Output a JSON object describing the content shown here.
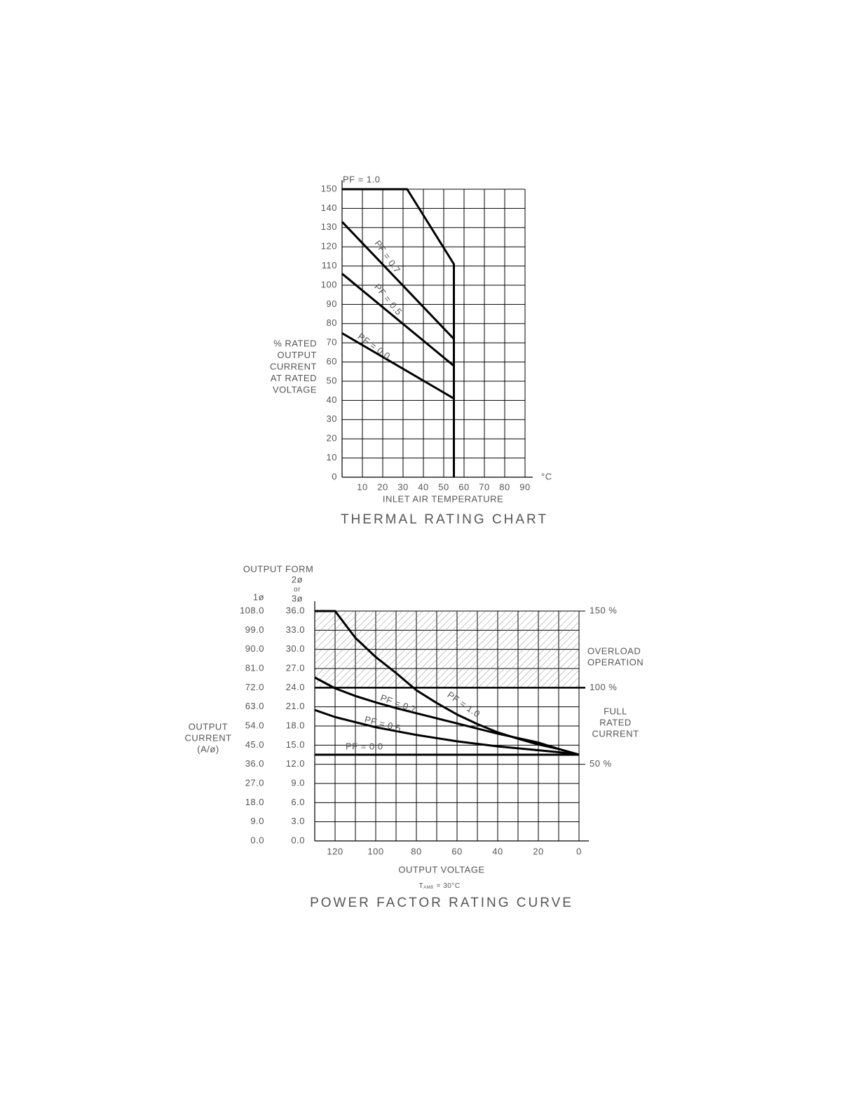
{
  "chart_data": [
    {
      "type": "line",
      "title": "THERMAL RATING CHART",
      "x_label": "INLET AIR TEMPERATURE",
      "x_unit": "°C",
      "y_label": [
        "% RATED",
        "OUTPUT",
        "CURRENT",
        "AT RATED",
        "VOLTAGE"
      ],
      "xlim": [
        0,
        90
      ],
      "xticks": [
        10,
        20,
        30,
        40,
        50,
        60,
        70,
        80,
        90
      ],
      "ylim": [
        0,
        150
      ],
      "yticks": [
        0,
        10,
        20,
        30,
        40,
        50,
        60,
        70,
        80,
        90,
        100,
        110,
        120,
        130,
        140,
        150
      ],
      "grid": true,
      "series": [
        {
          "name": "PF = 1.0",
          "color": "#000000",
          "x": [
            0,
            32,
            55,
            55
          ],
          "values": [
            150,
            150,
            111,
            0
          ]
        },
        {
          "name": "PF = 0.7",
          "color": "#000000",
          "x": [
            0,
            55
          ],
          "values": [
            133,
            72
          ]
        },
        {
          "name": "PF = 0.5",
          "color": "#000000",
          "x": [
            0,
            55
          ],
          "values": [
            106,
            58
          ]
        },
        {
          "name": "PF = 0.0",
          "color": "#000000",
          "x": [
            0,
            55
          ],
          "values": [
            75,
            41
          ]
        }
      ]
    },
    {
      "type": "line",
      "title": "POWER FACTOR RATING CURVE",
      "x_label": "OUTPUT VOLTAGE",
      "note": {
        "symbol": "T",
        "subscript": "AMB",
        "text": "= 30°C"
      },
      "y_heading": "OUTPUT FORM",
      "y_heading_3phase": [
        "2ø",
        "or",
        "3ø"
      ],
      "y_outer_heading": "1ø",
      "y_label": [
        "OUTPUT",
        "CURRENT",
        "(A/ø)"
      ],
      "xlim": [
        130,
        0
      ],
      "xticks": [
        120,
        100,
        80,
        60,
        40,
        20,
        0
      ],
      "x_minor_ticks": [
        110,
        90,
        70,
        50,
        30,
        10
      ],
      "ylim": [
        0,
        36
      ],
      "yticks": [
        {
          "value": 0,
          "label": "0.0"
        },
        {
          "value": 3,
          "label": "3.0"
        },
        {
          "value": 6,
          "label": "6.0"
        },
        {
          "value": 9,
          "label": "9.0"
        },
        {
          "value": 12,
          "label": "12.0"
        },
        {
          "value": 15,
          "label": "15.0"
        },
        {
          "value": 18,
          "label": "18.0"
        },
        {
          "value": 21,
          "label": "21.0"
        },
        {
          "value": 24,
          "label": "24.0"
        },
        {
          "value": 27,
          "label": "27.0"
        },
        {
          "value": 30,
          "label": "30.0"
        },
        {
          "value": 33,
          "label": "33.0"
        },
        {
          "value": 36,
          "label": "36.0"
        }
      ],
      "y_outer_lim": [
        0,
        108
      ],
      "y_outer_ticks": [
        {
          "value": 0,
          "label": "0.0"
        },
        {
          "value": 9,
          "label": "9.0"
        },
        {
          "value": 18,
          "label": "18.0"
        },
        {
          "value": 27,
          "label": "27.0"
        },
        {
          "value": 36,
          "label": "36.0"
        },
        {
          "value": 45,
          "label": "45.0"
        },
        {
          "value": 54,
          "label": "54.0"
        },
        {
          "value": 63,
          "label": "63.0"
        },
        {
          "value": 72,
          "label": "72.0"
        },
        {
          "value": 81,
          "label": "81.0"
        },
        {
          "value": 90,
          "label": "90.0"
        },
        {
          "value": 99,
          "label": "99.0"
        },
        {
          "value": 108,
          "label": "108.0"
        }
      ],
      "y2lim": [
        0,
        150
      ],
      "y2ticks": [
        {
          "value": 50,
          "label": "50 %"
        },
        {
          "value": 100,
          "label": "100 %"
        },
        {
          "value": 150,
          "label": "150 %"
        }
      ],
      "overload_range": [
        100,
        150
      ],
      "overload_label": [
        "OVERLOAD",
        "OPERATION"
      ],
      "full_rated_label": [
        "FULL",
        "RATED",
        "CURRENT"
      ],
      "grid": true,
      "x": [
        130,
        120,
        110,
        100,
        90,
        80,
        70,
        60,
        50,
        40,
        30,
        20,
        10,
        0
      ],
      "series": [
        {
          "name": "PF = 1.0",
          "color": "#000000",
          "values": [
            36,
            36,
            31.8,
            28.8,
            26.3,
            23.6,
            21.6,
            19.8,
            18.3,
            17,
            16,
            15.1,
            14.4,
            13.5
          ]
        },
        {
          "name": "PF = 0.7",
          "color": "#000000",
          "values": [
            25.6,
            23.9,
            22.7,
            21.7,
            20.8,
            20,
            19.2,
            18.4,
            17.6,
            16.8,
            16.1,
            15.4,
            14.4,
            13.5
          ]
        },
        {
          "name": "PF = 0.5",
          "color": "#000000",
          "values": [
            20.5,
            19.4,
            18.6,
            17.8,
            17.2,
            16.6,
            16.1,
            15.6,
            15.2,
            14.8,
            14.5,
            14.2,
            13.9,
            13.5
          ]
        },
        {
          "name": "PF = 0.0",
          "color": "#000000",
          "values": [
            13.5,
            13.5,
            13.5,
            13.5,
            13.5,
            13.5,
            13.5,
            13.5,
            13.5,
            13.5,
            13.5,
            13.5,
            13.5,
            13.5
          ]
        }
      ]
    }
  ]
}
